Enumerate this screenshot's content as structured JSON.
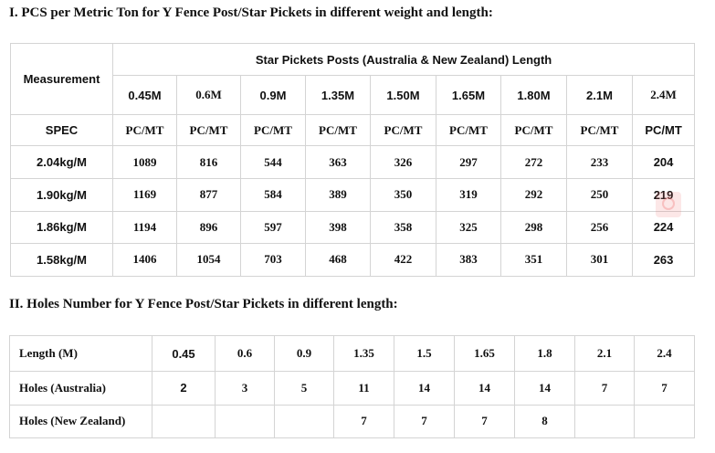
{
  "section1": {
    "heading": "I. PCS per Metric Ton for Y Fence Post/Star Pickets in different weight and length:",
    "measurement_label": "Measurement",
    "group_header": "Star Pickets Posts (Australia & New Zealand) Length",
    "lengths": [
      "0.45M",
      "0.6M",
      "0.9M",
      "1.35M",
      "1.50M",
      "1.65M",
      "1.80M",
      "2.1M",
      "2.4M"
    ],
    "spec_label": "SPEC",
    "unit": "PC/MT",
    "rows": [
      {
        "spec": "2.04kg/M",
        "values": [
          "1089",
          "816",
          "544",
          "363",
          "326",
          "297",
          "272",
          "233",
          "204"
        ]
      },
      {
        "spec": "1.90kg/M",
        "values": [
          "1169",
          "877",
          "584",
          "389",
          "350",
          "319",
          "292",
          "250",
          "219"
        ]
      },
      {
        "spec": "1.86kg/M",
        "values": [
          "1194",
          "896",
          "597",
          "398",
          "358",
          "325",
          "298",
          "256",
          "224"
        ]
      },
      {
        "spec": "1.58kg/M",
        "values": [
          "1406",
          "1054",
          "703",
          "468",
          "422",
          "383",
          "351",
          "301",
          "263"
        ]
      }
    ]
  },
  "section2": {
    "heading": "II. Holes Number for Y Fence Post/Star Pickets in different length:",
    "rows": [
      {
        "label": "Length (M)",
        "values": [
          "0.45",
          "0.6",
          "0.9",
          "1.35",
          "1.5",
          "1.65",
          "1.8",
          "2.1",
          "2.4"
        ]
      },
      {
        "label": "Holes (Australia)",
        "values": [
          "2",
          "3",
          "5",
          "11",
          "14",
          "14",
          "14",
          "7",
          "7"
        ]
      },
      {
        "label": "Holes (New Zealand)",
        "values": [
          "",
          "",
          "",
          "7",
          "7",
          "7",
          "8",
          "",
          ""
        ]
      }
    ]
  },
  "watermark_icon": "search-icon"
}
